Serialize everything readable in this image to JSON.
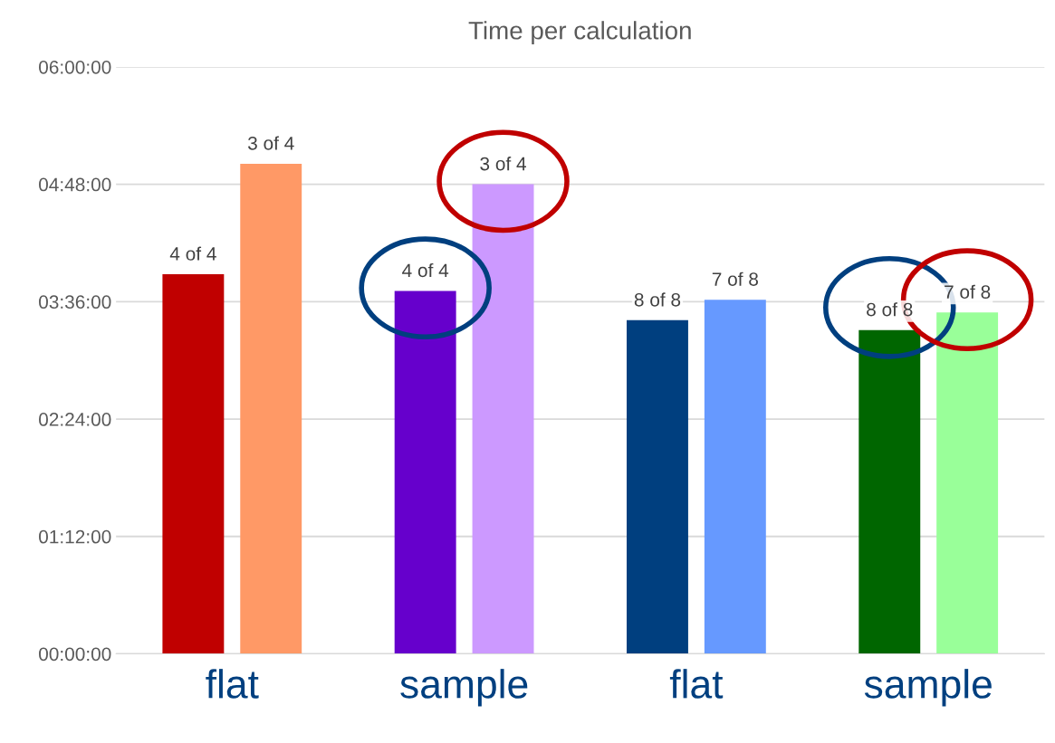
{
  "chart_data": {
    "type": "bar",
    "title": "Time per calculation",
    "categories": [
      "flat",
      "sample",
      "flat",
      "sample"
    ],
    "series": [
      {
        "colors": [
          "#c00000",
          "#6600cc",
          "#003f7f",
          "#006600"
        ],
        "values": [
          3.88,
          3.71,
          3.41,
          3.31
        ]
      },
      {
        "colors": [
          "#ff9966",
          "#cc99ff",
          "#6699ff",
          "#99ff99"
        ],
        "values": [
          5.01,
          4.8,
          3.62,
          3.49
        ]
      }
    ],
    "annotations": [
      "4 of 4",
      "3 of 4",
      "4 of 4",
      "3 of 4",
      "8 of 8",
      "7 of 8",
      "8 of 8",
      "7 of 8"
    ],
    "ylim": [
      0,
      6
    ],
    "yticks": [
      {
        "value": 0,
        "label": "00:00:00"
      },
      {
        "value": 1.2,
        "label": "01:12:00"
      },
      {
        "value": 2.4,
        "label": "02:24:00"
      },
      {
        "value": 3.6,
        "label": "03:36:00"
      },
      {
        "value": 4.8,
        "label": "04:48:00"
      },
      {
        "value": 6,
        "label": "06:00:00"
      }
    ],
    "grid": "y",
    "legend": false
  }
}
